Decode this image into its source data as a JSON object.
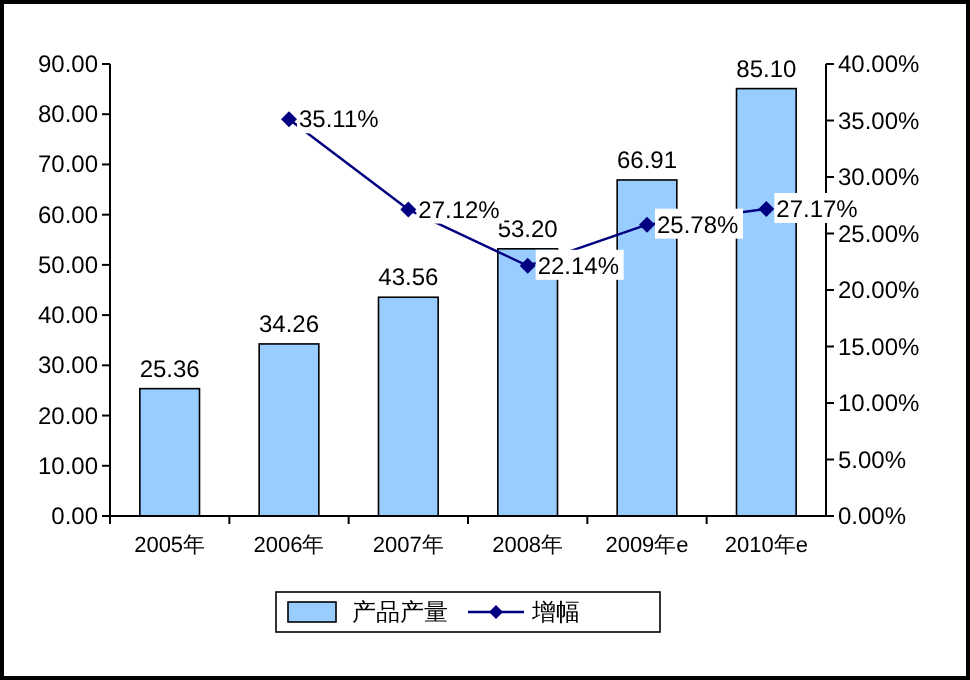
{
  "chart_data": {
    "type": "bar",
    "categories": [
      "2005年",
      "2006年",
      "2007年",
      "2008年",
      "2009年e",
      "2010年e"
    ],
    "series": [
      {
        "name": "产品产量",
        "color": "#99ccff",
        "values": [
          25.36,
          34.26,
          43.56,
          53.2,
          66.91,
          85.1
        ],
        "value_labels": [
          "25.36",
          "34.26",
          "43.56",
          "53.20",
          "66.91",
          "85.10"
        ]
      },
      {
        "name": "增幅",
        "type": "line",
        "axis": "y2",
        "color": "#000080",
        "values": [
          null,
          35.11,
          27.12,
          22.14,
          25.78,
          27.17
        ],
        "value_labels": [
          null,
          "35.11%",
          "27.12%",
          "22.14%",
          "25.78%",
          "27.17%"
        ]
      }
    ],
    "ylim": [
      0,
      90
    ],
    "yticks": [
      {
        "value": 0,
        "label": "0.00"
      },
      {
        "value": 10,
        "label": "10.00"
      },
      {
        "value": 20,
        "label": "20.00"
      },
      {
        "value": 30,
        "label": "30.00"
      },
      {
        "value": 40,
        "label": "40.00"
      },
      {
        "value": 50,
        "label": "50.00"
      },
      {
        "value": 60,
        "label": "60.00"
      },
      {
        "value": 70,
        "label": "70.00"
      },
      {
        "value": 80,
        "label": "80.00"
      },
      {
        "value": 90,
        "label": "90.00"
      }
    ],
    "y2lim": [
      0,
      40
    ],
    "y2ticks": [
      {
        "value": 0,
        "label": "0.00%"
      },
      {
        "value": 5,
        "label": "5.00%"
      },
      {
        "value": 10,
        "label": "10.00%"
      },
      {
        "value": 15,
        "label": "15.00%"
      },
      {
        "value": 20,
        "label": "20.00%"
      },
      {
        "value": 25,
        "label": "25.00%"
      },
      {
        "value": 30,
        "label": "30.00%"
      },
      {
        "value": 35,
        "label": "35.00%"
      },
      {
        "value": 40,
        "label": "40.00%"
      }
    ],
    "marker": "diamond",
    "line_style": "solid",
    "legend": "bottom"
  }
}
